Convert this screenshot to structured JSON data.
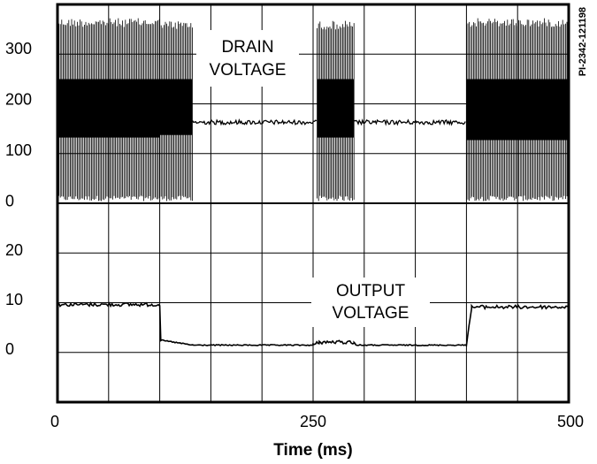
{
  "chart_data": {
    "type": "line",
    "xlabel": "Time (ms)",
    "x_ticks": [
      "0",
      "250",
      "500"
    ],
    "x_range": [
      0,
      500
    ],
    "grid": true,
    "figure_id": "PI-2342-121198",
    "panels": [
      {
        "name": "DRAIN VOLTAGE",
        "annotation_lines": [
          "DRAIN",
          "VOLTAGE"
        ],
        "y_ticks": [
          "300",
          "200",
          "100",
          "0"
        ],
        "y_range": [
          0,
          370
        ],
        "segments": [
          {
            "x": [
              0,
              100
            ],
            "mode": "switching",
            "low": 0,
            "high": 360,
            "band_low": 125,
            "band_high": 240
          },
          {
            "x": [
              100,
              132
            ],
            "mode": "switching",
            "low": 0,
            "high": 355,
            "band_low": 130,
            "band_high": 240
          },
          {
            "x": [
              132,
              254
            ],
            "mode": "steady",
            "level": 155
          },
          {
            "x": [
              254,
              290
            ],
            "mode": "switching",
            "low": 0,
            "high": 355,
            "band_low": 125,
            "band_high": 240
          },
          {
            "x": [
              290,
              400
            ],
            "mode": "steady",
            "level": 155
          },
          {
            "x": [
              400,
              500
            ],
            "mode": "switching",
            "low": 0,
            "high": 360,
            "band_low": 120,
            "band_high": 240
          }
        ]
      },
      {
        "name": "OUTPUT VOLTAGE",
        "annotation_lines": [
          "OUTPUT",
          "VOLTAGE"
        ],
        "y_ticks": [
          "20",
          "10",
          "0"
        ],
        "y_range": [
          -10,
          30
        ],
        "points": [
          [
            0,
            9
          ],
          [
            100,
            9
          ],
          [
            101,
            1.8
          ],
          [
            120,
            1.2
          ],
          [
            132,
            0.8
          ],
          [
            250,
            0.8
          ],
          [
            256,
            1.4
          ],
          [
            290,
            1.4
          ],
          [
            292,
            0.8
          ],
          [
            400,
            0.8
          ],
          [
            405,
            8.5
          ],
          [
            500,
            8.5
          ]
        ]
      }
    ]
  }
}
